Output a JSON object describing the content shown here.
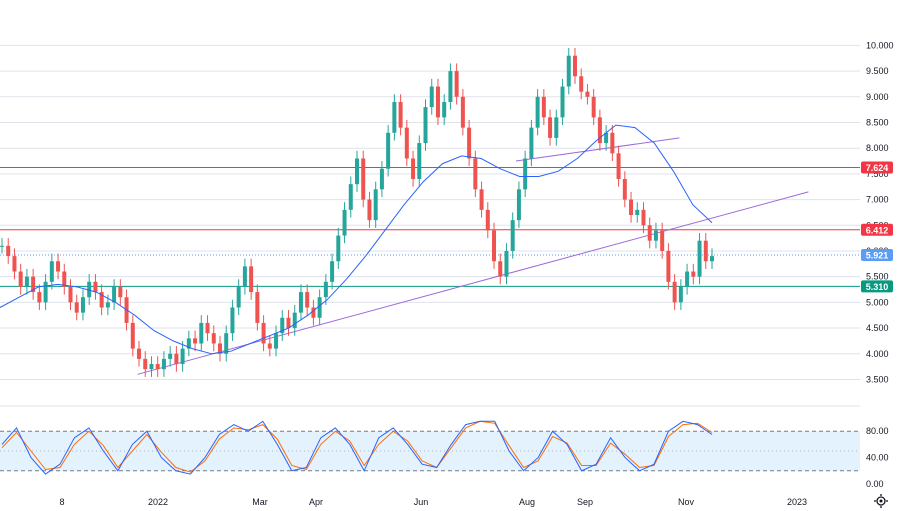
{
  "colors": {
    "up": "#26a69a",
    "down": "#ef5350",
    "ma": "#2962ff",
    "trend": "#9c6ade",
    "resistance": "#f23645",
    "support": "#089981",
    "current": "#5b9cf6",
    "stoch_k": "#2962ff",
    "stoch_d": "#ff6d00",
    "stoch_band": "#e3f2fd"
  },
  "chart_data": {
    "type": "candlestick",
    "price_axis": {
      "ticks": [
        "3.500",
        "4.000",
        "4.500",
        "5.000",
        "5.500",
        "6.000",
        "6.500",
        "7.000",
        "7.500",
        "8.000",
        "8.500",
        "9.000",
        "9.500",
        "10.000"
      ],
      "range": [
        3.1,
        10.3
      ]
    },
    "time_axis": {
      "ticks": [
        "8",
        "2022",
        "Mar",
        "Apr",
        "Jun",
        "Aug",
        "Sep",
        "Nov",
        "2023"
      ]
    },
    "price_labels": [
      {
        "id": "r1",
        "value": 7.624,
        "text": "7.624",
        "kind": "resistance"
      },
      {
        "id": "r2",
        "value": 6.412,
        "text": "6.412",
        "kind": "resistance"
      },
      {
        "id": "cur",
        "value": 5.921,
        "text": "5.921",
        "kind": "current"
      },
      {
        "id": "s1",
        "value": 5.31,
        "text": "5.310",
        "kind": "support"
      }
    ],
    "trend_lines": [
      {
        "name": "lower-trendline",
        "from": {
          "t": 0.16,
          "v": 3.6
        },
        "to": {
          "t": 0.94,
          "v": 7.15
        }
      },
      {
        "name": "upper-trendline",
        "from": {
          "t": 0.6,
          "v": 7.75
        },
        "to": {
          "t": 0.79,
          "v": 8.2
        }
      }
    ],
    "candles_close": [
      6.1,
      5.9,
      5.6,
      5.3,
      5.5,
      5.2,
      5.0,
      5.4,
      5.8,
      5.6,
      5.3,
      5.0,
      4.8,
      5.1,
      5.4,
      5.2,
      4.9,
      5.0,
      5.3,
      5.1,
      4.6,
      4.1,
      3.9,
      3.7,
      3.8,
      3.7,
      3.9,
      4.0,
      3.8,
      4.1,
      4.3,
      4.2,
      4.6,
      4.4,
      4.2,
      4.0,
      4.4,
      4.9,
      5.3,
      5.7,
      5.2,
      4.6,
      4.2,
      4.1,
      4.4,
      4.7,
      4.5,
      4.8,
      5.2,
      4.9,
      4.7,
      5.1,
      5.4,
      5.8,
      6.3,
      6.8,
      7.3,
      7.8,
      7.0,
      6.6,
      7.2,
      7.6,
      8.3,
      8.9,
      8.4,
      7.8,
      7.4,
      8.1,
      8.8,
      9.2,
      8.6,
      8.9,
      9.5,
      9.0,
      8.4,
      7.8,
      7.2,
      6.8,
      6.4,
      5.8,
      5.5,
      6.0,
      6.6,
      7.2,
      7.8,
      8.4,
      9.0,
      8.6,
      8.2,
      8.6,
      9.2,
      9.8,
      9.4,
      9.1,
      9.0,
      8.6,
      8.1,
      8.3,
      7.9,
      7.4,
      7.0,
      6.7,
      6.8,
      6.5,
      6.2,
      6.4,
      6.0,
      5.4,
      5.0,
      5.3,
      5.6,
      5.5,
      6.2,
      5.8,
      5.9
    ],
    "ma_values": [
      4.9,
      5.1,
      5.3,
      5.35,
      5.3,
      5.2,
      5.0,
      4.75,
      4.45,
      4.25,
      4.1,
      4.0,
      4.05,
      4.2,
      4.35,
      4.5,
      4.75,
      5.05,
      5.45,
      5.9,
      6.4,
      6.9,
      7.35,
      7.7,
      7.85,
      7.8,
      7.6,
      7.45,
      7.45,
      7.55,
      7.8,
      8.15,
      8.45,
      8.4,
      8.1,
      7.55,
      6.9,
      6.55
    ],
    "stochastic": {
      "ticks": [
        "80.00",
        "40.00",
        "0.00"
      ],
      "upper_band": 80,
      "lower_band": 20,
      "k": [
        60,
        85,
        40,
        15,
        30,
        70,
        85,
        50,
        20,
        60,
        80,
        40,
        20,
        15,
        40,
        75,
        90,
        80,
        95,
        60,
        20,
        25,
        70,
        85,
        60,
        20,
        70,
        85,
        60,
        30,
        25,
        60,
        90,
        95,
        95,
        50,
        20,
        40,
        80,
        60,
        20,
        30,
        70,
        40,
        20,
        30,
        80,
        95,
        90,
        75
      ],
      "d": [
        55,
        78,
        50,
        22,
        25,
        60,
        80,
        58,
        25,
        50,
        75,
        48,
        25,
        18,
        35,
        68,
        85,
        82,
        90,
        68,
        28,
        22,
        60,
        80,
        65,
        28,
        60,
        80,
        65,
        35,
        25,
        55,
        85,
        95,
        92,
        58,
        25,
        35,
        72,
        62,
        28,
        28,
        62,
        45,
        25,
        28,
        72,
        90,
        92,
        78
      ]
    }
  }
}
